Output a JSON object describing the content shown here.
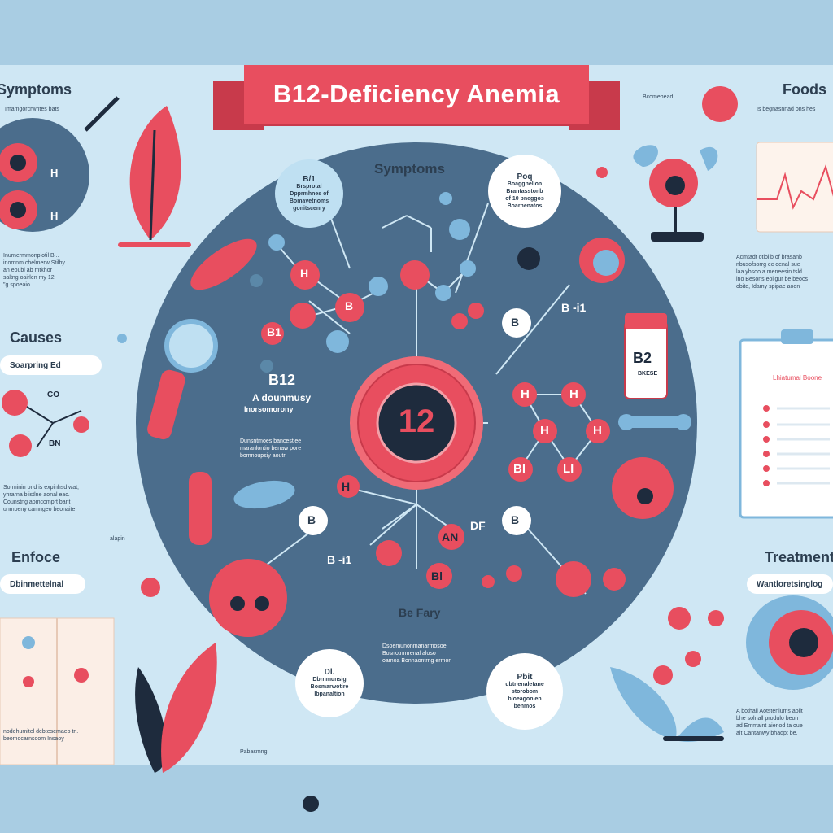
{
  "title": "B12-Deficiency Anemia",
  "center_badge": "12",
  "headings": {
    "symptoms_left": "Symptoms",
    "foods": "Foods",
    "causes": "Causes",
    "enfoce": "Enfoce",
    "treatment": "Treatment",
    "symptoms_center": "Symptoms",
    "be_fary": "Be Fary"
  },
  "pills": {
    "causes": "Soarpring Ed",
    "enfoce": "Dbinmettelnal",
    "treatment": "Wantloretsinglog"
  },
  "center_text": {
    "b12_title": "B12",
    "b12_sub": "A dounmusy",
    "b12_sub2": "Inorsomorony",
    "b_i1_right": "B -i1",
    "b_i1_bottom": "B -i1",
    "df": "DF"
  },
  "bubbles": {
    "top_left": {
      "title": "B/1",
      "body": "Brsprotal\nDpprmhnes of\nBomavetnoms\ngonitscenry"
    },
    "top_right": {
      "title": "Poq",
      "body": "Boaggnelion\nBrantasstonb\nof 10 bneggos\nBoarnenatos"
    },
    "bottom_left": {
      "title": "Dl.",
      "body": "Dbrnmunsig\nBosmarwotire\nIbpanaltion"
    },
    "bottom_right": {
      "title": "Pbit",
      "body": "ubtnenaletane\nstorobom\nbloeagonien\nbenmos"
    }
  },
  "small_text": {
    "left_symptoms_sub": "Imamgorcrwhtes bats",
    "left_para": "Inurnermmonplotil B...\ninomnm chelmerw Stilby\nan eoubl ab mtkhor\nsaltng oairlen my 12\n\"g spoeaio...",
    "left_causes_para": "Sorminin ond is expinhsd wat,\nyhrarna blistlne aonal eac.\nCounstng aomcomprt bant\nunmoeny camngeo beonaite.",
    "left_enfoce_para": "nodehumitel debtesemaeo tn.\nbeomocarnsoom Insaoy",
    "right_foods_sub": "Is begnasnnad ons hes",
    "right_para": "Acmtadt otlollb of brasanb\nnbusofsorrg ec oenal sue\nlaa ybsoo a meneesin tsld\nlno Besons eoligur be beocs\nobite, Idamy spipae aoon",
    "right_clipboard": "Lhiatumal Boone",
    "right_treatment_para": "A bothall Aotsteniums aoiit\nbhe solnall produlo beon\nad Emmaint aienod ta oue\nalt Cantanwy bhadpt be.",
    "center_para_left": "Dunsntmoes bancestiee\nmaranlontio benaw pore\nbomnoupsiy aoutrl",
    "center_para_bottom": "Dsoemunonmanarmosoe\nBosnotnmrenal aloso\noamoa Bonnaontrng ermon",
    "label_atom_b1": "B1",
    "label_atom_b": "B",
    "label_atom_h": "H",
    "label_atom_co": "CO",
    "label_atom_bn": "BN",
    "label_alapin": "alapin",
    "label_bottle": "B2",
    "label_bottle_sub": "BKESE",
    "label_misc_left": "Pabasmng",
    "label_misc_tl": "Bcomehead",
    "label_center_h": "H",
    "label_center_b1": "Bl",
    "label_center_li": "Ll",
    "label_center_an": "AN"
  },
  "colors": {
    "bg": "#a9cde3",
    "panel": "#cfe7f4",
    "circle": "#4b6d8c",
    "red": "#e84e5f",
    "navy": "#1e2b3d",
    "blue": "#7fb7dc"
  }
}
